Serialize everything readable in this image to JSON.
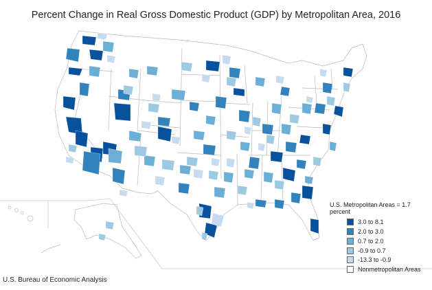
{
  "title": "Percent Change in Real Gross Domestic Product (GDP) by Metropolitan Area, 2016",
  "legend": {
    "title": "U.S. Metropolitan Areas = 1.7 percent",
    "items": [
      {
        "label": "3.0 to 8.1",
        "color": "#08519c"
      },
      {
        "label": "2.0 to 3.0",
        "color": "#3182bd"
      },
      {
        "label": "0.7 to 2.0",
        "color": "#6baed6"
      },
      {
        "label": "-0.9 to 0.7",
        "color": "#9ecae1"
      },
      {
        "label": "-13.3 to -0.9",
        "color": "#c6dbef"
      },
      {
        "label": "Nonmetropolitan Areas",
        "color": "#ffffff"
      }
    ]
  },
  "source": "U.S. Bureau of Economic Analysis"
}
